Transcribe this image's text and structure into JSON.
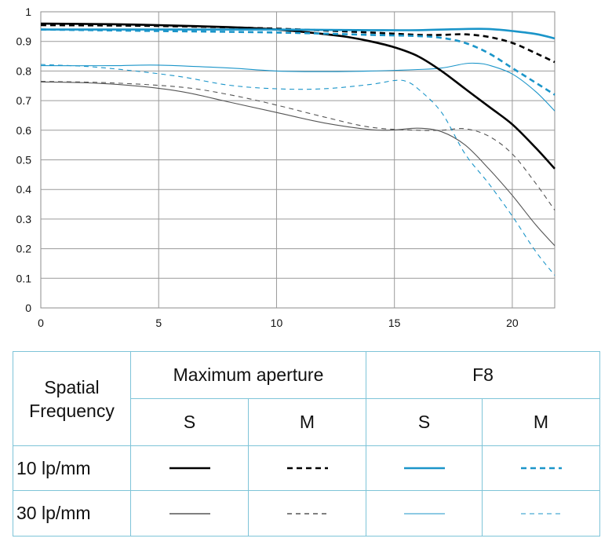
{
  "chart_data": {
    "type": "line",
    "xlim": [
      0,
      21.8
    ],
    "ylim": [
      0,
      1
    ],
    "x_ticks": [
      "0",
      "5",
      "10",
      "15",
      "20"
    ],
    "y_ticks": [
      "0",
      "0.1",
      "0.2",
      "0.3",
      "0.4",
      "0.5",
      "0.6",
      "0.7",
      "0.8",
      "0.9",
      "1"
    ],
    "grid": true,
    "series": [
      {
        "aperture": "Maximum aperture",
        "frequency": "10 lp/mm",
        "direction": "S",
        "color": "#000000",
        "dashed": false,
        "weight": "thick",
        "x": [
          0,
          3,
          5,
          8,
          10,
          12,
          13,
          14,
          15,
          16,
          17,
          18,
          19,
          20,
          21,
          21.8
        ],
        "y": [
          0.96,
          0.958,
          0.955,
          0.948,
          0.94,
          0.925,
          0.915,
          0.9,
          0.88,
          0.85,
          0.8,
          0.74,
          0.68,
          0.62,
          0.54,
          0.47
        ]
      },
      {
        "aperture": "Maximum aperture",
        "frequency": "10 lp/mm",
        "direction": "M",
        "color": "#000000",
        "dashed": true,
        "weight": "thick",
        "x": [
          0,
          5,
          10,
          14,
          16,
          17,
          18,
          19,
          20,
          21,
          21.8
        ],
        "y": [
          0.955,
          0.952,
          0.943,
          0.93,
          0.922,
          0.922,
          0.924,
          0.915,
          0.895,
          0.86,
          0.83
        ]
      },
      {
        "aperture": "F8",
        "frequency": "10 lp/mm",
        "direction": "S",
        "color": "#1b95c9",
        "dashed": false,
        "weight": "thick",
        "x": [
          0,
          5,
          10,
          14,
          16,
          18,
          19,
          20,
          21,
          21.8
        ],
        "y": [
          0.94,
          0.94,
          0.94,
          0.938,
          0.938,
          0.942,
          0.942,
          0.935,
          0.925,
          0.91
        ]
      },
      {
        "aperture": "F8",
        "frequency": "10 lp/mm",
        "direction": "M",
        "color": "#1b95c9",
        "dashed": true,
        "weight": "thick",
        "x": [
          0,
          5,
          10,
          14,
          16,
          17,
          18,
          19,
          20,
          21,
          21.8
        ],
        "y": [
          0.94,
          0.935,
          0.93,
          0.922,
          0.918,
          0.912,
          0.895,
          0.86,
          0.81,
          0.76,
          0.72
        ]
      },
      {
        "aperture": "Maximum aperture",
        "frequency": "30 lp/mm",
        "direction": "S",
        "color": "#555555",
        "dashed": false,
        "weight": "thin",
        "x": [
          0,
          2,
          4,
          6,
          8,
          10,
          12,
          14,
          15,
          16,
          17,
          18,
          19,
          20,
          21,
          21.8
        ],
        "y": [
          0.763,
          0.76,
          0.75,
          0.73,
          0.695,
          0.66,
          0.625,
          0.602,
          0.601,
          0.607,
          0.595,
          0.55,
          0.47,
          0.38,
          0.28,
          0.21
        ]
      },
      {
        "aperture": "Maximum aperture",
        "frequency": "30 lp/mm",
        "direction": "M",
        "color": "#555555",
        "dashed": true,
        "weight": "thin",
        "x": [
          0,
          3,
          6,
          8,
          10,
          12,
          14,
          16,
          17,
          18,
          19,
          20,
          21,
          21.8
        ],
        "y": [
          0.765,
          0.76,
          0.745,
          0.72,
          0.685,
          0.645,
          0.61,
          0.6,
          0.6,
          0.605,
          0.58,
          0.52,
          0.42,
          0.33
        ]
      },
      {
        "aperture": "F8",
        "frequency": "30 lp/mm",
        "direction": "S",
        "color": "#1b95c9",
        "dashed": false,
        "weight": "thin",
        "x": [
          0,
          3,
          5,
          8,
          10,
          12,
          14,
          16,
          17,
          18,
          18.5,
          19,
          20,
          21,
          21.8
        ],
        "y": [
          0.818,
          0.818,
          0.82,
          0.81,
          0.8,
          0.798,
          0.8,
          0.805,
          0.81,
          0.825,
          0.826,
          0.82,
          0.79,
          0.73,
          0.665
        ]
      },
      {
        "aperture": "F8",
        "frequency": "30 lp/mm",
        "direction": "M",
        "color": "#1b95c9",
        "dashed": true,
        "weight": "thin",
        "x": [
          0,
          2,
          4,
          6,
          8,
          10,
          12,
          14,
          15,
          15.5,
          16,
          17,
          18,
          19,
          20,
          21,
          21.8
        ],
        "y": [
          0.822,
          0.815,
          0.8,
          0.78,
          0.752,
          0.74,
          0.74,
          0.755,
          0.768,
          0.765,
          0.74,
          0.66,
          0.52,
          0.42,
          0.31,
          0.19,
          0.11
        ]
      }
    ]
  },
  "legend": {
    "header_label": "Spatial Frequency",
    "aperture_headers": [
      "Maximum aperture",
      "F8"
    ],
    "direction_labels": [
      "S",
      "M",
      "S",
      "M"
    ],
    "rows": [
      {
        "label": "10 lp/mm",
        "weight": "thick"
      },
      {
        "label": "30 lp/mm",
        "weight": "thin"
      }
    ],
    "columns": [
      {
        "color": "#000000",
        "dashed": false
      },
      {
        "color": "#000000",
        "dashed": true
      },
      {
        "color": "#1b95c9",
        "dashed": false
      },
      {
        "color": "#1b95c9",
        "dashed": true
      }
    ]
  }
}
